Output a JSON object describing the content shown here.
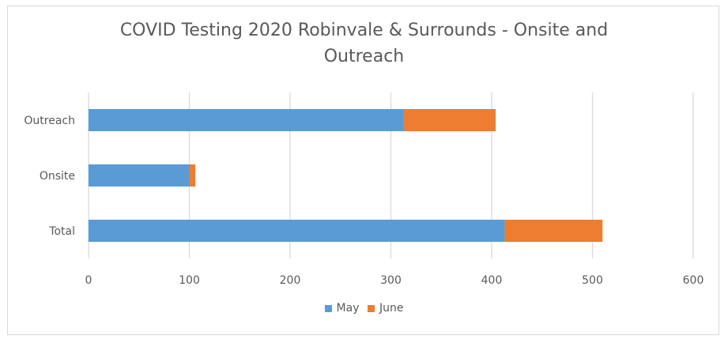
{
  "chart_data": {
    "type": "bar",
    "orientation": "horizontal",
    "stacked": true,
    "title_lines": [
      "COVID Testing 2020 Robinvale & Surrounds  - Onsite and",
      "Outreach"
    ],
    "categories": [
      "Outreach",
      "Onsite",
      "Total"
    ],
    "series": [
      {
        "name": "May",
        "color": "#5b9bd5",
        "values": [
          313,
          100,
          413
        ]
      },
      {
        "name": "June",
        "color": "#ed7d31",
        "values": [
          91,
          6,
          97
        ]
      }
    ],
    "xlim": [
      0,
      600
    ],
    "x_ticks": [
      "0",
      "100",
      "200",
      "300",
      "400",
      "500",
      "600"
    ],
    "grid": true,
    "legend_position": "bottom"
  }
}
